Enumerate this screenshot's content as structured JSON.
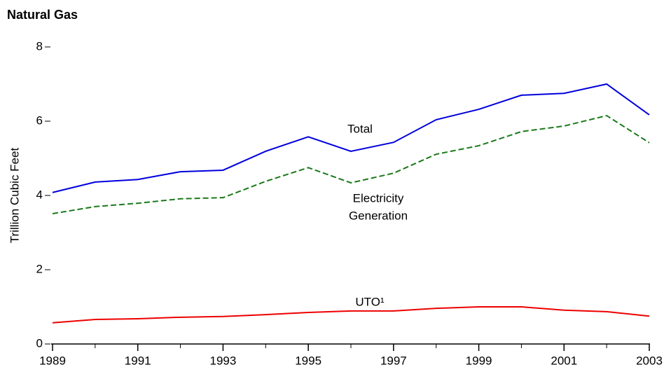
{
  "chart_data": {
    "type": "line",
    "title": "Natural Gas",
    "ylabel": "Trillion Cubic Feet",
    "x": [
      1989,
      1990,
      1991,
      1992,
      1993,
      1994,
      1995,
      1996,
      1997,
      1998,
      1999,
      2000,
      2001,
      2002,
      2003
    ],
    "xlim": [
      1989,
      2003
    ],
    "xticks": [
      1989,
      1991,
      1993,
      1995,
      1997,
      1999,
      2001,
      2003
    ],
    "ylim": [
      0,
      8
    ],
    "yticks": [
      0,
      2,
      4,
      6,
      8
    ],
    "grid": false,
    "series": [
      {
        "label": [
          "Total"
        ],
        "color": "#0000dd",
        "dash": false,
        "values": [
          4.08,
          4.36,
          4.43,
          4.64,
          4.68,
          5.19,
          5.58,
          5.19,
          5.43,
          6.04,
          6.32,
          6.7,
          6.75,
          7.0,
          6.17
        ]
      },
      {
        "label": [
          "Electricity",
          "Generation"
        ],
        "color": "#1a7a1a",
        "dash": true,
        "values": [
          3.51,
          3.7,
          3.79,
          3.91,
          3.94,
          4.38,
          4.75,
          4.34,
          4.6,
          5.11,
          5.34,
          5.72,
          5.87,
          6.15,
          5.42
        ]
      },
      {
        "label": [
          "UTO¹"
        ],
        "color": "#ee0000",
        "dash": false,
        "values": [
          0.57,
          0.66,
          0.68,
          0.72,
          0.74,
          0.79,
          0.85,
          0.89,
          0.89,
          0.96,
          1.0,
          1.0,
          0.91,
          0.87,
          0.75
        ]
      }
    ]
  }
}
